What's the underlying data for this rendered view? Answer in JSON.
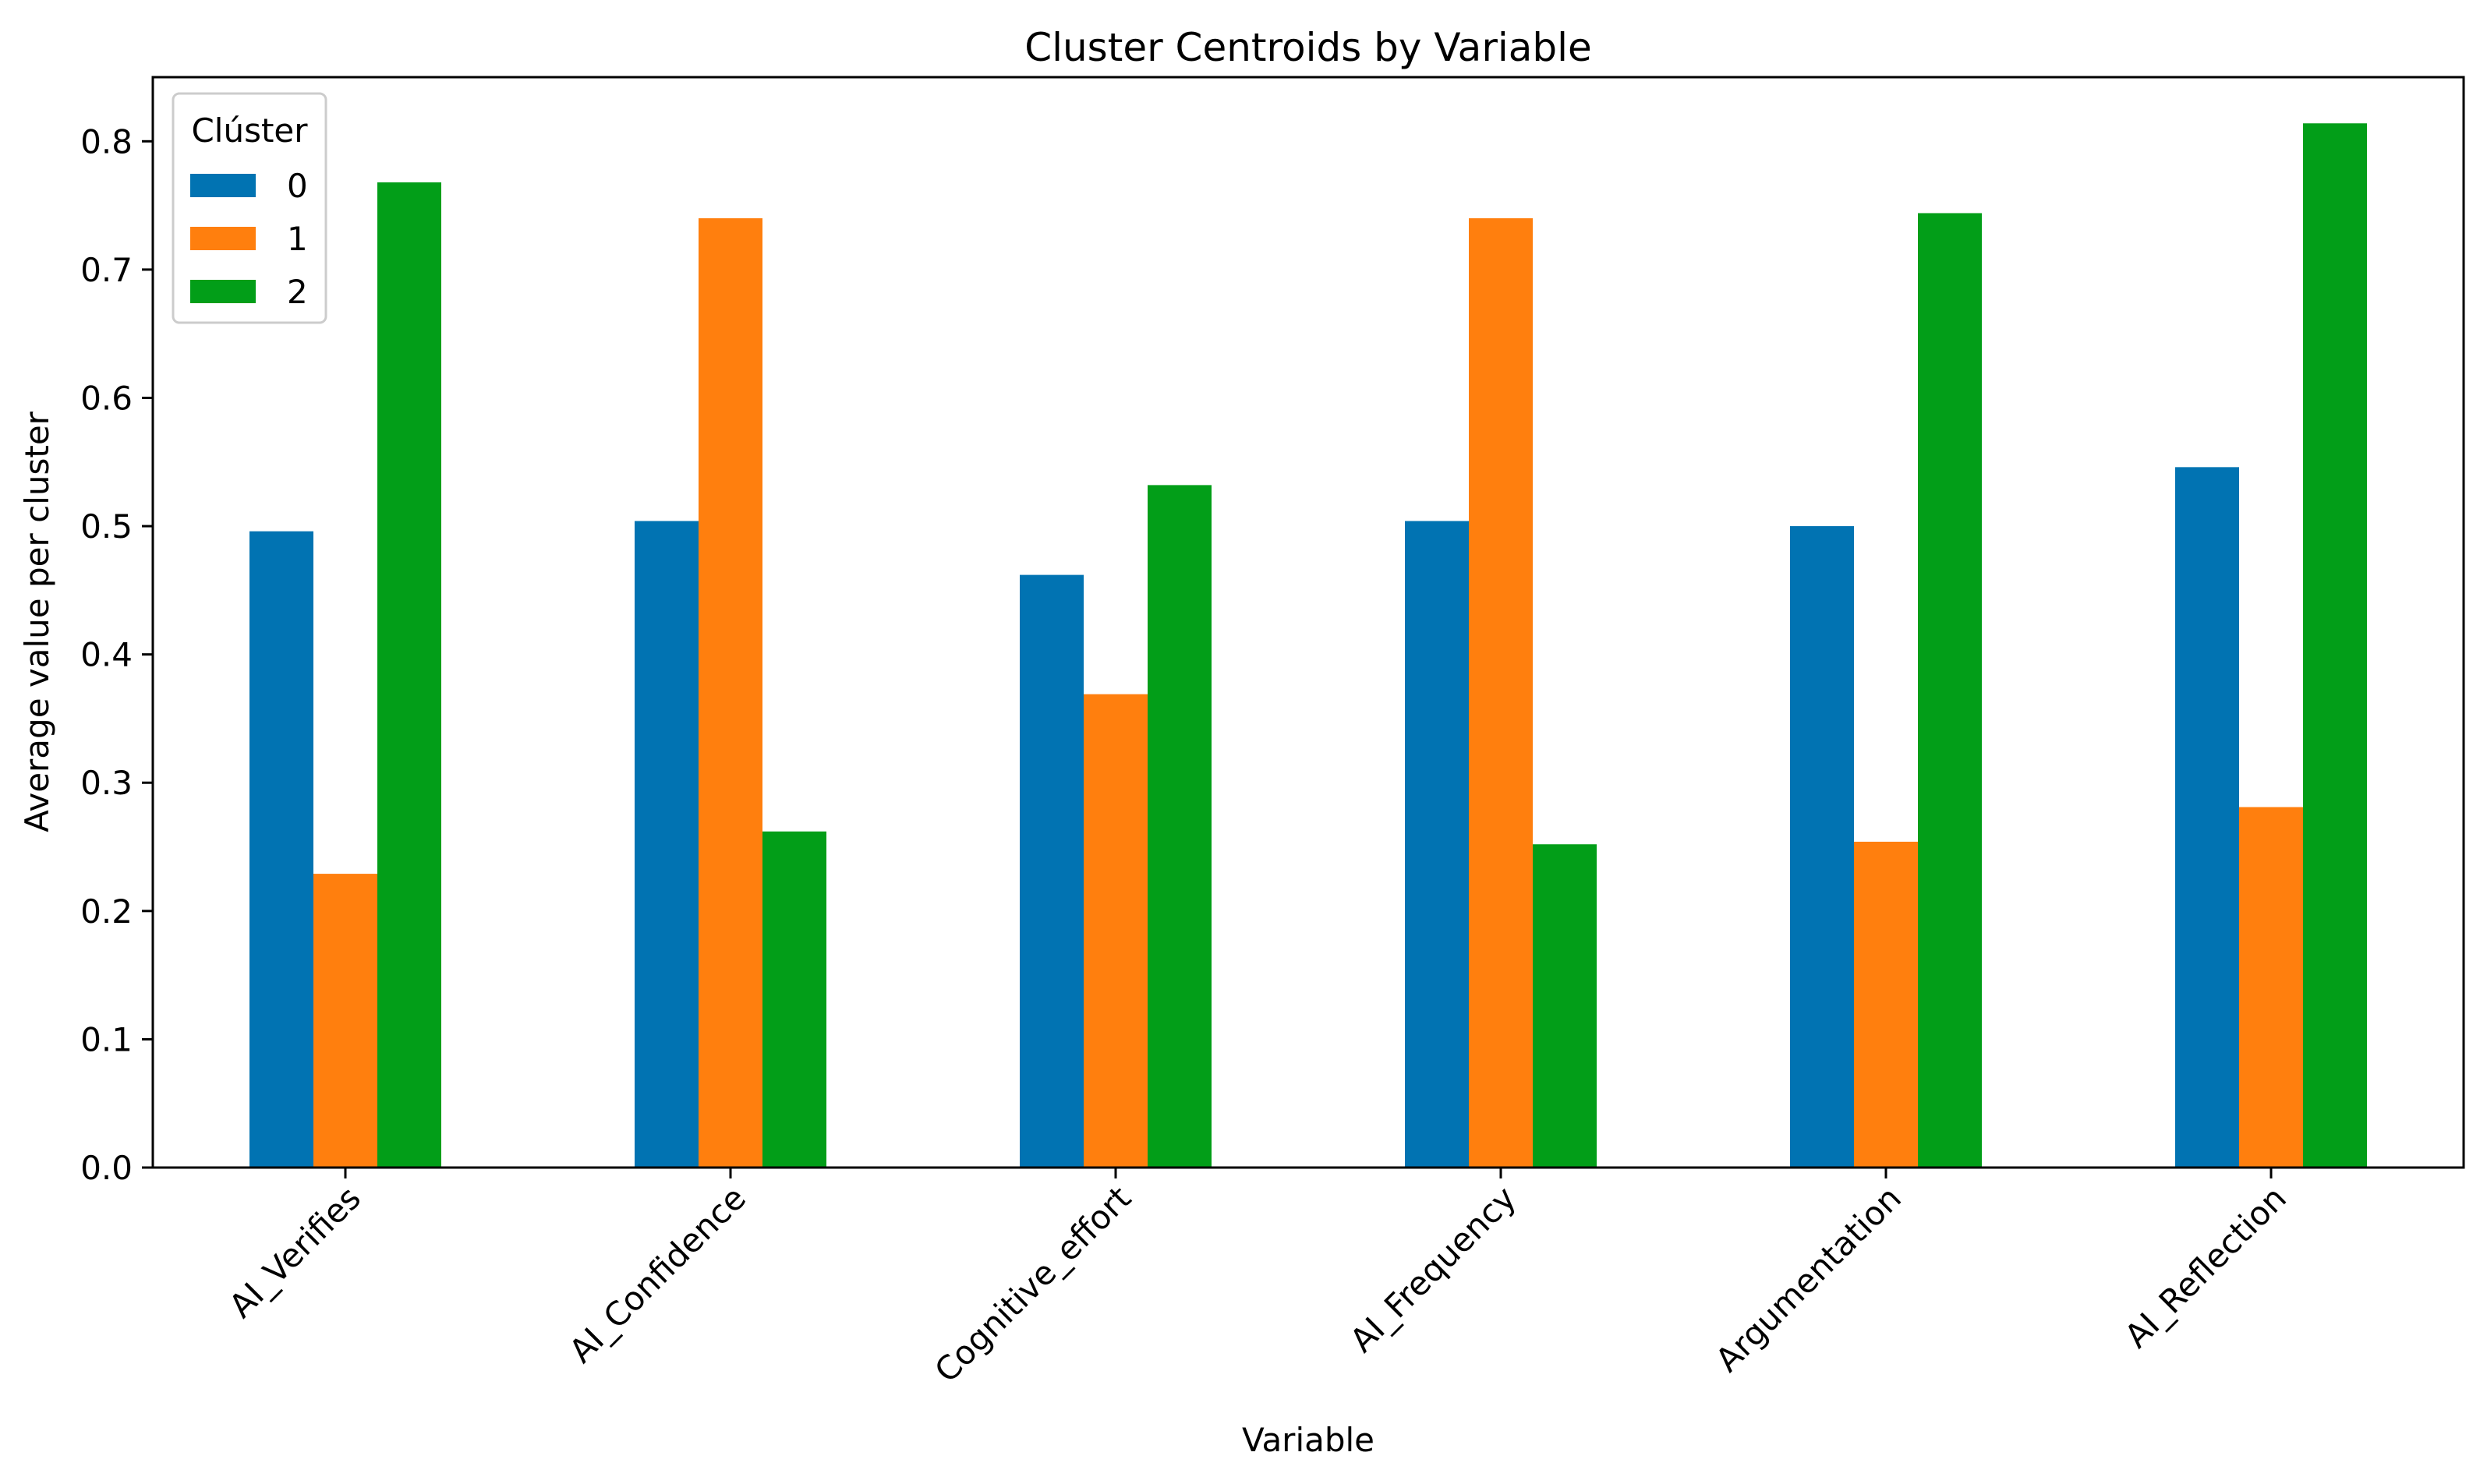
{
  "chart_data": {
    "type": "bar",
    "title": "Cluster Centroids by Variable",
    "xlabel": "Variable",
    "ylabel": "Average value per cluster",
    "categories": [
      "AI_Verifies",
      "AI_Confidence",
      "Cognitive_effort",
      "AI_Frequency",
      "Argumentation",
      "AI_Reflection"
    ],
    "series": [
      {
        "name": "0",
        "color": "#0173b2",
        "values": [
          0.496,
          0.504,
          0.462,
          0.504,
          0.5,
          0.546
        ]
      },
      {
        "name": "1",
        "color": "#ff7f0e",
        "values": [
          0.229,
          0.74,
          0.369,
          0.74,
          0.254,
          0.281
        ]
      },
      {
        "name": "2",
        "color": "#029e18",
        "values": [
          0.768,
          0.262,
          0.532,
          0.252,
          0.744,
          0.814
        ]
      }
    ],
    "ylim": [
      0,
      0.85
    ],
    "yticks": [
      0.0,
      0.1,
      0.2,
      0.3,
      0.4,
      0.5,
      0.6,
      0.7,
      0.8
    ],
    "ytick_labels": [
      "0.0",
      "0.1",
      "0.2",
      "0.3",
      "0.4",
      "0.5",
      "0.6",
      "0.7",
      "0.8"
    ],
    "grid": false,
    "legend": {
      "title": "Clúster",
      "placement": "top-left"
    }
  }
}
